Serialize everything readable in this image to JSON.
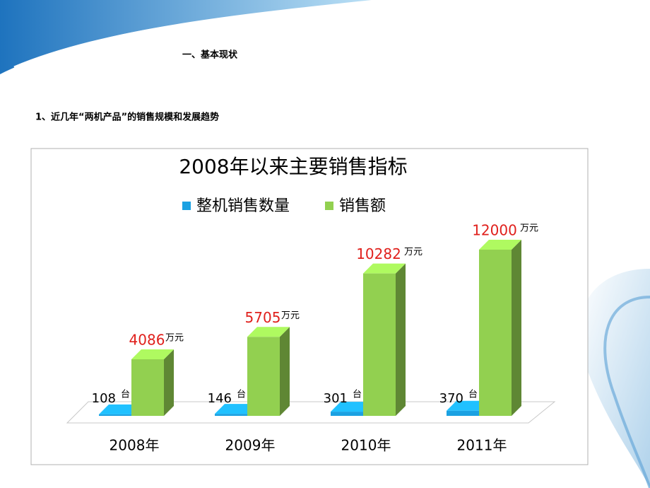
{
  "slide": {
    "heading": "一、基本现状",
    "subheading": "1、近几年“两机产品”的销售规模和发展趋势"
  },
  "chart_data": {
    "type": "bar3d",
    "title": "2008年以来主要销售指标",
    "categories": [
      "2008年",
      "2009年",
      "2010年",
      "2011年"
    ],
    "series": [
      {
        "name": "整机销售数量",
        "color": "#1ba1e2",
        "unit": "台",
        "values": [
          108,
          146,
          301,
          370
        ]
      },
      {
        "name": "销售额",
        "color": "#92d050",
        "unit": "万元",
        "values": [
          4086,
          5705,
          10282,
          12000
        ]
      }
    ]
  }
}
